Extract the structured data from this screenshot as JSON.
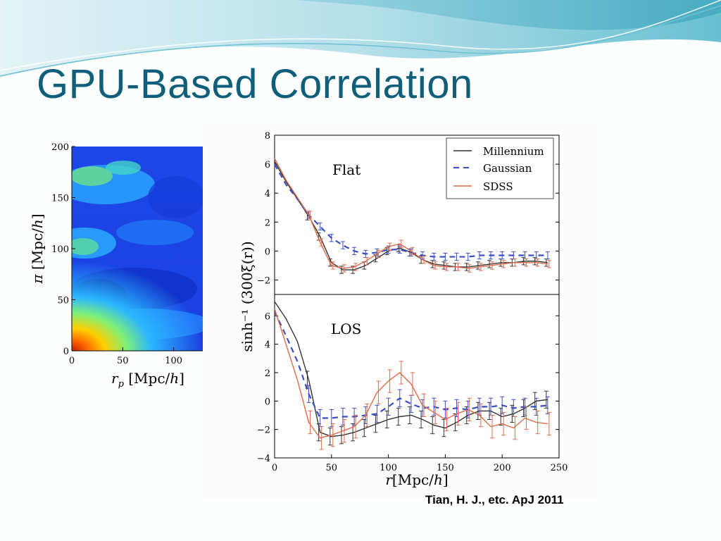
{
  "slide": {
    "title": "GPU-Based Correlation",
    "citation": "Tian, H. J., etc. ApJ 2011",
    "colors": {
      "title": "#0f5f7a",
      "header_wave_light": "#bfe6ef",
      "header_wave_dark": "#4fb5c9"
    }
  },
  "chart_data": [
    {
      "type": "heatmap",
      "xlabel": "r_p [Mpc/h]",
      "ylabel": "π [Mpc/h]",
      "xlim": [
        0,
        130
      ],
      "ylim": [
        0,
        200
      ],
      "x_ticks": [
        "0",
        "50",
        "100"
      ],
      "y_ticks": [
        "0",
        "50",
        "100",
        "150",
        "200"
      ],
      "colormap": "jet",
      "notes": "correlation map: high (red/yellow) near origin, low (blue) elsewhere, greenish plumes near pi≈100-120 and 150-200"
    },
    {
      "type": "line",
      "panel": "Flat",
      "panel_label": "Flat",
      "xlim": [
        0,
        250
      ],
      "ylim": [
        -3,
        8
      ],
      "y_ticks": [
        "-2",
        "0",
        "2",
        "4",
        "6",
        "8"
      ],
      "ylabel": "sinh⁻¹ (300ξ(r))",
      "legend": {
        "placement": "top-right",
        "entries": [
          "Millennium",
          "Gaussian",
          "SDSS"
        ]
      },
      "series": [
        {
          "name": "Millennium",
          "color": "#333333",
          "style": "solid",
          "x": [
            0,
            10,
            20,
            30,
            40,
            50,
            60,
            70,
            80,
            90,
            100,
            110,
            120,
            130,
            140,
            150,
            160,
            170,
            180,
            190,
            200,
            210,
            220,
            230,
            240
          ],
          "y": [
            6.2,
            4.8,
            3.6,
            2.4,
            1.0,
            -0.8,
            -1.3,
            -1.3,
            -1.0,
            -0.5,
            0.0,
            0.2,
            -0.1,
            -0.6,
            -0.9,
            -1.0,
            -1.1,
            -1.1,
            -1.0,
            -0.9,
            -0.8,
            -0.8,
            -0.7,
            -0.7,
            -0.8
          ]
        },
        {
          "name": "Gaussian",
          "color": "#3b4fc4",
          "style": "dashed",
          "x": [
            0,
            10,
            20,
            30,
            40,
            50,
            60,
            70,
            80,
            90,
            100,
            110,
            120,
            130,
            140,
            150,
            160,
            170,
            180,
            190,
            200,
            210,
            220,
            230,
            240
          ],
          "y": [
            6.0,
            4.6,
            3.6,
            2.5,
            1.7,
            0.9,
            0.4,
            0.0,
            -0.2,
            -0.1,
            0.1,
            0.1,
            -0.1,
            -0.3,
            -0.4,
            -0.4,
            -0.4,
            -0.4,
            -0.3,
            -0.3,
            -0.3,
            -0.3,
            -0.3,
            -0.3,
            -0.3
          ]
        },
        {
          "name": "SDSS",
          "color": "#e06a4a",
          "style": "solid",
          "x": [
            0,
            10,
            20,
            30,
            40,
            50,
            60,
            70,
            80,
            90,
            100,
            110,
            120,
            130,
            140,
            150,
            160,
            170,
            180,
            190,
            200,
            210,
            220,
            230,
            240
          ],
          "y": [
            6.4,
            4.9,
            3.7,
            2.5,
            0.6,
            -1.0,
            -1.2,
            -1.1,
            -0.7,
            -0.2,
            0.3,
            0.5,
            0.0,
            -0.6,
            -1.0,
            -1.1,
            -1.1,
            -1.2,
            -1.1,
            -1.0,
            -0.9,
            -0.8,
            -0.8,
            -0.8,
            -0.9
          ]
        }
      ]
    },
    {
      "type": "line",
      "panel": "LOS",
      "panel_label": "LOS",
      "xlim": [
        0,
        250
      ],
      "ylim": [
        -4,
        7.5
      ],
      "x_ticks": [
        "0",
        "50",
        "100",
        "150",
        "200",
        "250"
      ],
      "y_ticks": [
        "-4",
        "-2",
        "0",
        "2",
        "4",
        "6"
      ],
      "xlabel": "r[Mpc/h]",
      "series": [
        {
          "name": "Millennium",
          "color": "#333333",
          "style": "solid",
          "x": [
            0,
            10,
            20,
            30,
            40,
            50,
            60,
            70,
            80,
            90,
            100,
            110,
            120,
            130,
            140,
            150,
            160,
            170,
            180,
            190,
            200,
            210,
            220,
            230,
            240
          ],
          "y": [
            7.0,
            5.8,
            4.2,
            1.5,
            -2.2,
            -2.5,
            -2.4,
            -2.2,
            -1.9,
            -1.6,
            -1.3,
            -1.1,
            -1.0,
            -1.3,
            -1.7,
            -1.9,
            -1.5,
            -1.0,
            -0.7,
            -0.7,
            -1.1,
            -0.9,
            -0.5,
            0.0,
            0.1
          ]
        },
        {
          "name": "Gaussian",
          "color": "#3b4fc4",
          "style": "dashed",
          "x": [
            0,
            10,
            20,
            30,
            40,
            50,
            60,
            70,
            80,
            90,
            100,
            110,
            120,
            130,
            140,
            150,
            160,
            170,
            180,
            190,
            200,
            210,
            220,
            230,
            240
          ],
          "y": [
            6.3,
            4.6,
            2.8,
            0.5,
            -1.2,
            -1.2,
            -1.1,
            -1.1,
            -1.0,
            -0.9,
            -0.4,
            0.2,
            -0.2,
            -0.5,
            -0.4,
            -0.6,
            -0.5,
            -0.6,
            -0.4,
            -0.4,
            -0.3,
            -0.5,
            -0.4,
            -0.4,
            -0.3
          ]
        },
        {
          "name": "SDSS",
          "color": "#e06a4a",
          "style": "solid",
          "x": [
            0,
            10,
            20,
            30,
            40,
            50,
            60,
            70,
            80,
            90,
            100,
            110,
            120,
            130,
            140,
            150,
            160,
            170,
            180,
            190,
            200,
            210,
            220,
            230,
            240
          ],
          "y": [
            6.5,
            4.0,
            1.5,
            -1.5,
            -2.6,
            -2.4,
            -2.1,
            -1.8,
            -1.0,
            0.6,
            1.4,
            2.0,
            1.2,
            -0.3,
            -0.8,
            -1.3,
            -0.9,
            -0.6,
            -1.0,
            -1.8,
            -1.6,
            -1.9,
            -1.2,
            -1.5,
            -1.6
          ]
        }
      ]
    }
  ]
}
